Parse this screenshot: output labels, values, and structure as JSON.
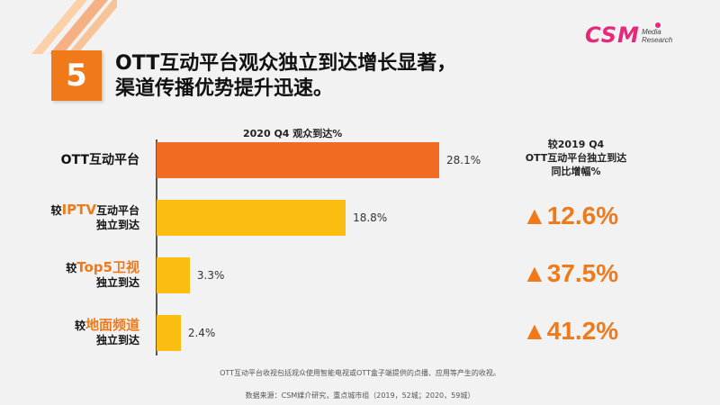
{
  "section_number": "5",
  "title_line1": "OTT互动平台观众独立到达增长显著，",
  "title_line2": "渠道传播优势提升迅速。",
  "logo": {
    "brand": "CSM",
    "sub1": "Media",
    "sub2": "Research"
  },
  "growth_header": {
    "line1": "较2019 Q4",
    "line2": "OTT互动平台独立到达",
    "line3": "同比增幅%"
  },
  "footnotes": {
    "note": "OTT互动平台收视包括观众使用智能电视或OTT盒子端提供的点播、应用等产生的收视。",
    "source": "数据来源：CSM媒介研究，重点城市组（2019，52城；2020，59城）"
  },
  "colors": {
    "accent": "#f07a1a",
    "highlight_bar": "#f26b22",
    "bar": "#fbbd0f",
    "brand": "#e6287a"
  },
  "chart_data": {
    "type": "bar",
    "orientation": "horizontal",
    "title": "2020 Q4 观众到达%",
    "xlabel": "",
    "ylabel": "",
    "xlim": [
      0,
      30
    ],
    "grid": false,
    "categories": [
      {
        "pre": "",
        "hl": "",
        "post": "OTT互动平台",
        "line2": ""
      },
      {
        "pre": "较",
        "hl": "IPTV",
        "post": "互动平台",
        "line2": "独立到达"
      },
      {
        "pre": "较",
        "hl": "Top5卫视",
        "post": "",
        "line2": "独立到达"
      },
      {
        "pre": "较",
        "hl": "地面频道",
        "post": "",
        "line2": "独立到达"
      }
    ],
    "values": [
      28.1,
      18.8,
      3.3,
      2.4
    ],
    "value_labels": [
      "28.1%",
      "18.8%",
      "3.3%",
      "2.4%"
    ],
    "growth_labels": [
      "",
      "▲12.6%",
      "▲37.5%",
      "▲41.2%"
    ]
  }
}
